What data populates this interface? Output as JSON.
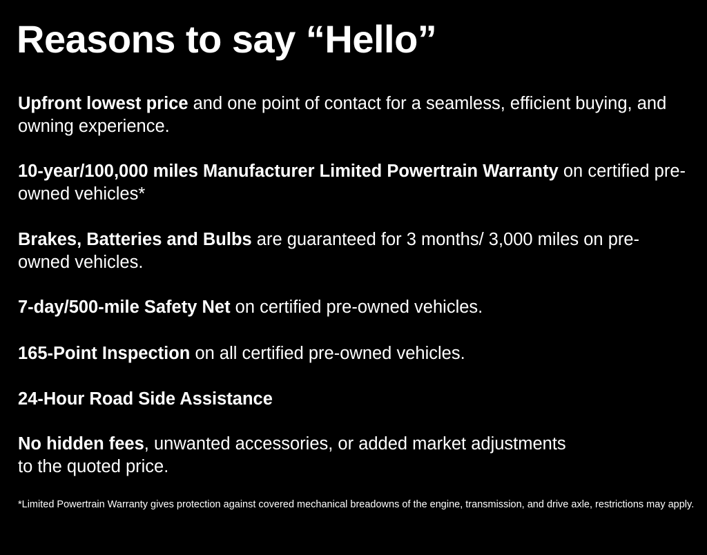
{
  "title": "Reasons to say “Hello”",
  "reasons": [
    {
      "bold": "Upfront lowest price",
      "rest": " and one point of contact for a seamless, efficient buying, and owning experience."
    },
    {
      "bold": "10-year/100,000 miles Manufacturer Limited Powertrain Warranty",
      "rest": " on certified pre-owned vehicles*"
    },
    {
      "bold": "Brakes, Batteries and Bulbs",
      "rest": " are guaranteed for 3 months/ 3,000 miles on pre-owned vehicles."
    },
    {
      "bold": "7-day/500-mile Safety Net",
      "rest": " on certified pre-owned vehicles."
    },
    {
      "bold": "165-Point Inspection",
      "rest": " on all certified pre-owned vehicles."
    },
    {
      "bold": "24-Hour Road Side Assistance",
      "rest": ""
    },
    {
      "bold": "No hidden fees",
      "rest": ", unwanted accessories, or added market adjustments to the quoted price."
    }
  ],
  "footnote": "*Limited Powertrain Warranty gives protection against covered mechanical breadowns of the engine, transmission, and drive axle, restrictions may apply."
}
